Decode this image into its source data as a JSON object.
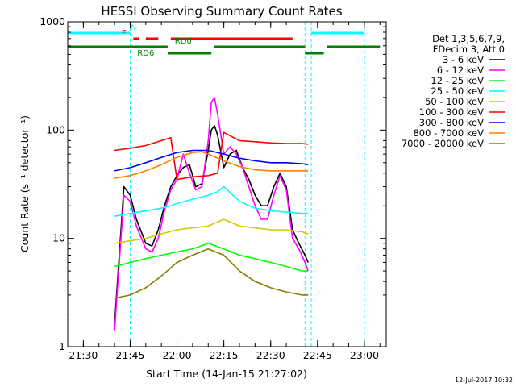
{
  "chart_data": {
    "type": "line",
    "title": "HESSI Observing Summary Count Rates",
    "xlabel": "Start Time (14-Jan-15 21:27:02)",
    "ylabel": "Count Rate (s⁻¹ detector⁻¹)",
    "xlim": [
      "21:25",
      "23:07"
    ],
    "ylim": [
      1,
      1000
    ],
    "yscale": "log",
    "x_ticks": [
      "21:30",
      "21:45",
      "22:00",
      "22:15",
      "22:30",
      "22:45",
      "23:00"
    ],
    "y_ticks": [
      "1",
      "10",
      "100",
      "1000"
    ],
    "grid": false,
    "legend_location": "right",
    "legend_header": [
      "Det 1,3,5,6,7,9,",
      "FDecim 3, Att 0"
    ],
    "series": [
      {
        "name": "3 - 6 keV",
        "color": "#000000",
        "x": [
          "21:40",
          "21:43",
          "21:45",
          "21:47",
          "21:50",
          "21:52",
          "21:54",
          "21:56",
          "21:58",
          "22:00",
          "22:02",
          "22:04",
          "22:06",
          "22:08",
          "22:10",
          "22:11",
          "22:12",
          "22:13",
          "22:15",
          "22:17",
          "22:19",
          "22:21",
          "22:23",
          "22:25",
          "22:27",
          "22:29",
          "22:31",
          "22:33",
          "22:35",
          "22:37",
          "22:39",
          "22:41",
          "22:42"
        ],
        "y": [
          1.6,
          30,
          25,
          15,
          9,
          8.5,
          12,
          20,
          30,
          38,
          45,
          48,
          30,
          32,
          65,
          100,
          110,
          90,
          45,
          60,
          65,
          45,
          35,
          25,
          20,
          20,
          30,
          40,
          30,
          12,
          9,
          7,
          6
        ]
      },
      {
        "name": "6 - 12 keV",
        "color": "#ff00ff",
        "x": [
          "21:40",
          "21:43",
          "21:45",
          "21:47",
          "21:50",
          "21:52",
          "21:54",
          "21:56",
          "21:58",
          "22:00",
          "22:02",
          "22:04",
          "22:06",
          "22:08",
          "22:10",
          "22:11",
          "22:12",
          "22:13",
          "22:15",
          "22:17",
          "22:19",
          "22:21",
          "22:23",
          "22:25",
          "22:27",
          "22:29",
          "22:31",
          "22:33",
          "22:35",
          "22:37",
          "22:39",
          "22:41",
          "22:42"
        ],
        "y": [
          1.4,
          25,
          22,
          13,
          8,
          7.5,
          10,
          18,
          28,
          35,
          60,
          40,
          28,
          30,
          80,
          180,
          200,
          140,
          60,
          70,
          60,
          45,
          30,
          20,
          15,
          15,
          25,
          38,
          28,
          10,
          8,
          6,
          5
        ]
      },
      {
        "name": "12 - 25 keV",
        "color": "#00ff00",
        "x": [
          "21:40",
          "21:45",
          "21:50",
          "21:55",
          "22:00",
          "22:05",
          "22:10",
          "22:15",
          "22:20",
          "22:25",
          "22:30",
          "22:35",
          "22:40",
          "22:42"
        ],
        "y": [
          5.5,
          6,
          6.5,
          7,
          7.5,
          8,
          9,
          8,
          7,
          6.5,
          6,
          5.5,
          5,
          5
        ]
      },
      {
        "name": "25 - 50 keV",
        "color": "#00ffff",
        "x": [
          "21:40",
          "21:45",
          "21:50",
          "21:55",
          "21:58",
          "22:00",
          "22:05",
          "22:10",
          "22:13",
          "22:15",
          "22:20",
          "22:25",
          "22:30",
          "22:35",
          "22:40",
          "22:42"
        ],
        "y": [
          16,
          17,
          18,
          19,
          20,
          21,
          23,
          25,
          27,
          30,
          22,
          19,
          18,
          17.5,
          17,
          17
        ]
      },
      {
        "name": "50 - 100 keV",
        "color": "#cccc00",
        "x": [
          "21:40",
          "21:45",
          "21:50",
          "21:55",
          "22:00",
          "22:05",
          "22:10",
          "22:15",
          "22:20",
          "22:25",
          "22:30",
          "22:35",
          "22:40",
          "22:42"
        ],
        "y": [
          9,
          9.5,
          10,
          11,
          12,
          12.5,
          13,
          15,
          13,
          12.5,
          12,
          12,
          11.5,
          11
        ]
      },
      {
        "name": "100 - 300 keV",
        "color": "#ff0000",
        "x": [
          "21:40",
          "21:45",
          "21:50",
          "21:55",
          "21:58",
          "22:00",
          "22:05",
          "22:10",
          "22:13",
          "22:15",
          "22:20",
          "22:25",
          "22:30",
          "22:35",
          "22:40",
          "22:42"
        ],
        "y": [
          65,
          68,
          72,
          80,
          85,
          35,
          37,
          38,
          40,
          95,
          80,
          78,
          76,
          75,
          75,
          74
        ]
      },
      {
        "name": "300 - 800 keV",
        "color": "#0000ff",
        "x": [
          "21:40",
          "21:45",
          "21:50",
          "21:55",
          "22:00",
          "22:05",
          "22:10",
          "22:15",
          "22:20",
          "22:25",
          "22:30",
          "22:35",
          "22:40",
          "22:42"
        ],
        "y": [
          42,
          45,
          50,
          56,
          62,
          65,
          65,
          60,
          55,
          52,
          50,
          50,
          49,
          48
        ]
      },
      {
        "name": "800 - 7000 keV",
        "color": "#ff8000",
        "x": [
          "21:40",
          "21:45",
          "21:50",
          "21:55",
          "22:00",
          "22:05",
          "22:08",
          "22:10",
          "22:15",
          "22:20",
          "22:25",
          "22:30",
          "22:35",
          "22:40",
          "22:42"
        ],
        "y": [
          36,
          38,
          42,
          48,
          56,
          62,
          63,
          60,
          52,
          46,
          43,
          42,
          42,
          42,
          42
        ]
      },
      {
        "name": "7000 - 20000 keV",
        "color": "#808000",
        "x": [
          "21:40",
          "21:45",
          "21:50",
          "21:55",
          "22:00",
          "22:05",
          "22:10",
          "22:15",
          "22:20",
          "22:25",
          "22:30",
          "22:35",
          "22:40",
          "22:42"
        ],
        "y": [
          2.8,
          3,
          3.5,
          4.5,
          6,
          7,
          8,
          7,
          5,
          4,
          3.5,
          3.2,
          3,
          3
        ]
      }
    ],
    "state_bars": [
      {
        "label": "N",
        "color": "#00ffff",
        "label_time": "21:46",
        "segments": [
          [
            "21:25",
            "21:45"
          ],
          [
            "22:43",
            "23:00"
          ]
        ]
      },
      {
        "label": "F",
        "color": "#ff0000",
        "label_time": "21:43",
        "segments": [
          [
            "21:46",
            "21:48"
          ],
          [
            "21:50",
            "21:54"
          ],
          [
            "21:58",
            "22:37"
          ]
        ]
      },
      {
        "label": "RD0",
        "color": "#008000",
        "label_time": "22:02",
        "segments": [
          [
            "21:25",
            "21:57"
          ],
          [
            "22:12",
            "22:41"
          ],
          [
            "22:48",
            "23:05"
          ]
        ]
      },
      {
        "label": "RD6",
        "color": "#008000",
        "label_time": "21:50",
        "segments": [
          [
            "21:57",
            "22:11"
          ],
          [
            "22:41",
            "22:47"
          ]
        ]
      }
    ],
    "markers": [
      {
        "time": "21:45",
        "color": "#00ffff"
      },
      {
        "time": "22:41",
        "color": "#00ffff"
      },
      {
        "time": "22:43",
        "color": "#00ffff"
      },
      {
        "time": "23:00",
        "color": "#00ffff"
      }
    ]
  },
  "footer": {
    "date_stamp": "12-Jul-2017 10:32"
  }
}
